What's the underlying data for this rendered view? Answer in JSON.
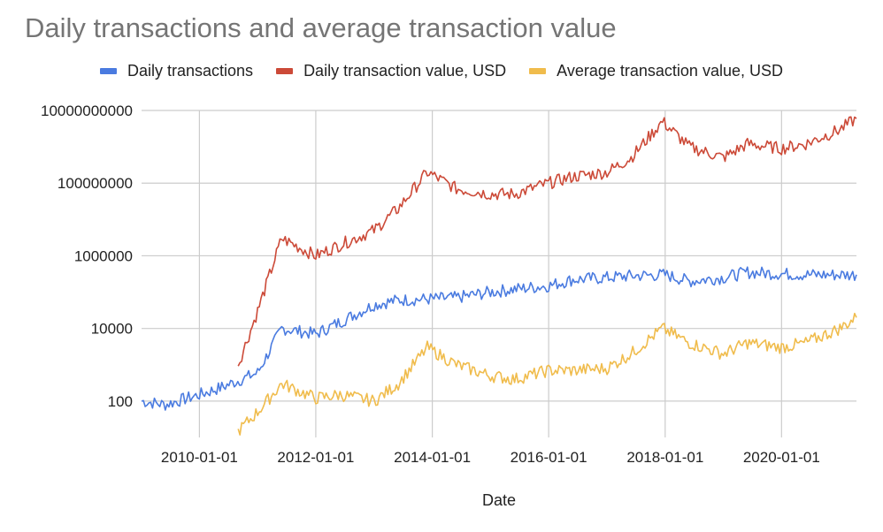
{
  "chart_data": {
    "type": "line",
    "title": "Daily transactions and average transaction value",
    "xlabel": "Date",
    "ylabel": "",
    "y_scale": "log",
    "ylim": [
      10,
      10000000000
    ],
    "xlim": [
      "2009-01-03",
      "2021-04-15"
    ],
    "grid": true,
    "legend_position": "top",
    "y_ticks": [
      100,
      10000,
      1000000,
      100000000,
      10000000000
    ],
    "y_tick_labels": [
      "100",
      "10000",
      "1000000",
      "100000000",
      "10000000000"
    ],
    "x_ticks": [
      "2010-01-01",
      "2012-01-01",
      "2014-01-01",
      "2016-01-01",
      "2018-01-01",
      "2020-01-01"
    ],
    "series": [
      {
        "name": "Daily transactions",
        "color": "#4a7be0",
        "x": [
          "2009-01-03",
          "2009-06-01",
          "2010-01-01",
          "2010-06-01",
          "2011-01-01",
          "2011-06-01",
          "2012-01-01",
          "2012-06-01",
          "2013-01-01",
          "2013-06-01",
          "2014-01-01",
          "2014-06-01",
          "2015-01-01",
          "2015-06-01",
          "2016-01-01",
          "2016-06-01",
          "2017-01-01",
          "2017-06-01",
          "2018-01-01",
          "2018-06-01",
          "2019-01-01",
          "2019-06-01",
          "2020-01-01",
          "2020-06-01",
          "2021-01-01",
          "2021-04-15"
        ],
        "values": [
          100,
          80,
          150,
          250,
          600,
          10000,
          7000,
          15000,
          45000,
          60000,
          65000,
          70000,
          100000,
          120000,
          150000,
          220000,
          250000,
          280000,
          300000,
          200000,
          250000,
          350000,
          320000,
          300000,
          300000,
          300000
        ]
      },
      {
        "name": "Daily transaction value, USD",
        "color": "#cc4a38",
        "x": [
          "2010-09-01",
          "2011-01-01",
          "2011-06-01",
          "2012-01-01",
          "2012-06-01",
          "2013-01-01",
          "2013-06-01",
          "2013-12-01",
          "2014-06-01",
          "2015-01-01",
          "2015-06-01",
          "2016-01-01",
          "2016-06-01",
          "2017-01-01",
          "2017-06-01",
          "2017-12-15",
          "2018-06-01",
          "2019-01-01",
          "2019-06-01",
          "2020-01-01",
          "2020-06-01",
          "2021-01-01",
          "2021-04-15"
        ],
        "values": [
          1000,
          30000,
          3000000,
          1000000,
          2000000,
          5000000,
          20000000,
          200000000,
          70000000,
          50000000,
          50000000,
          100000000,
          150000000,
          200000000,
          500000000,
          5000000000,
          1000000000,
          500000000,
          1200000000,
          900000000,
          1200000000,
          3000000000,
          6000000000
        ]
      },
      {
        "name": "Average transaction value, USD",
        "color": "#f0bc4c",
        "x": [
          "2010-09-01",
          "2011-01-01",
          "2011-06-01",
          "2012-01-01",
          "2012-06-01",
          "2013-01-01",
          "2013-06-01",
          "2013-12-01",
          "2014-06-01",
          "2015-01-01",
          "2015-06-01",
          "2016-01-01",
          "2016-06-01",
          "2017-01-01",
          "2017-06-01",
          "2017-12-15",
          "2018-06-01",
          "2019-01-01",
          "2019-06-01",
          "2020-01-01",
          "2020-06-01",
          "2021-01-01",
          "2021-04-15"
        ],
        "values": [
          15,
          50,
          300,
          120,
          150,
          100,
          300,
          3000,
          1000,
          500,
          400,
          700,
          700,
          800,
          2000,
          10000,
          4000,
          2000,
          4000,
          3000,
          4000,
          10000,
          20000
        ]
      }
    ]
  }
}
